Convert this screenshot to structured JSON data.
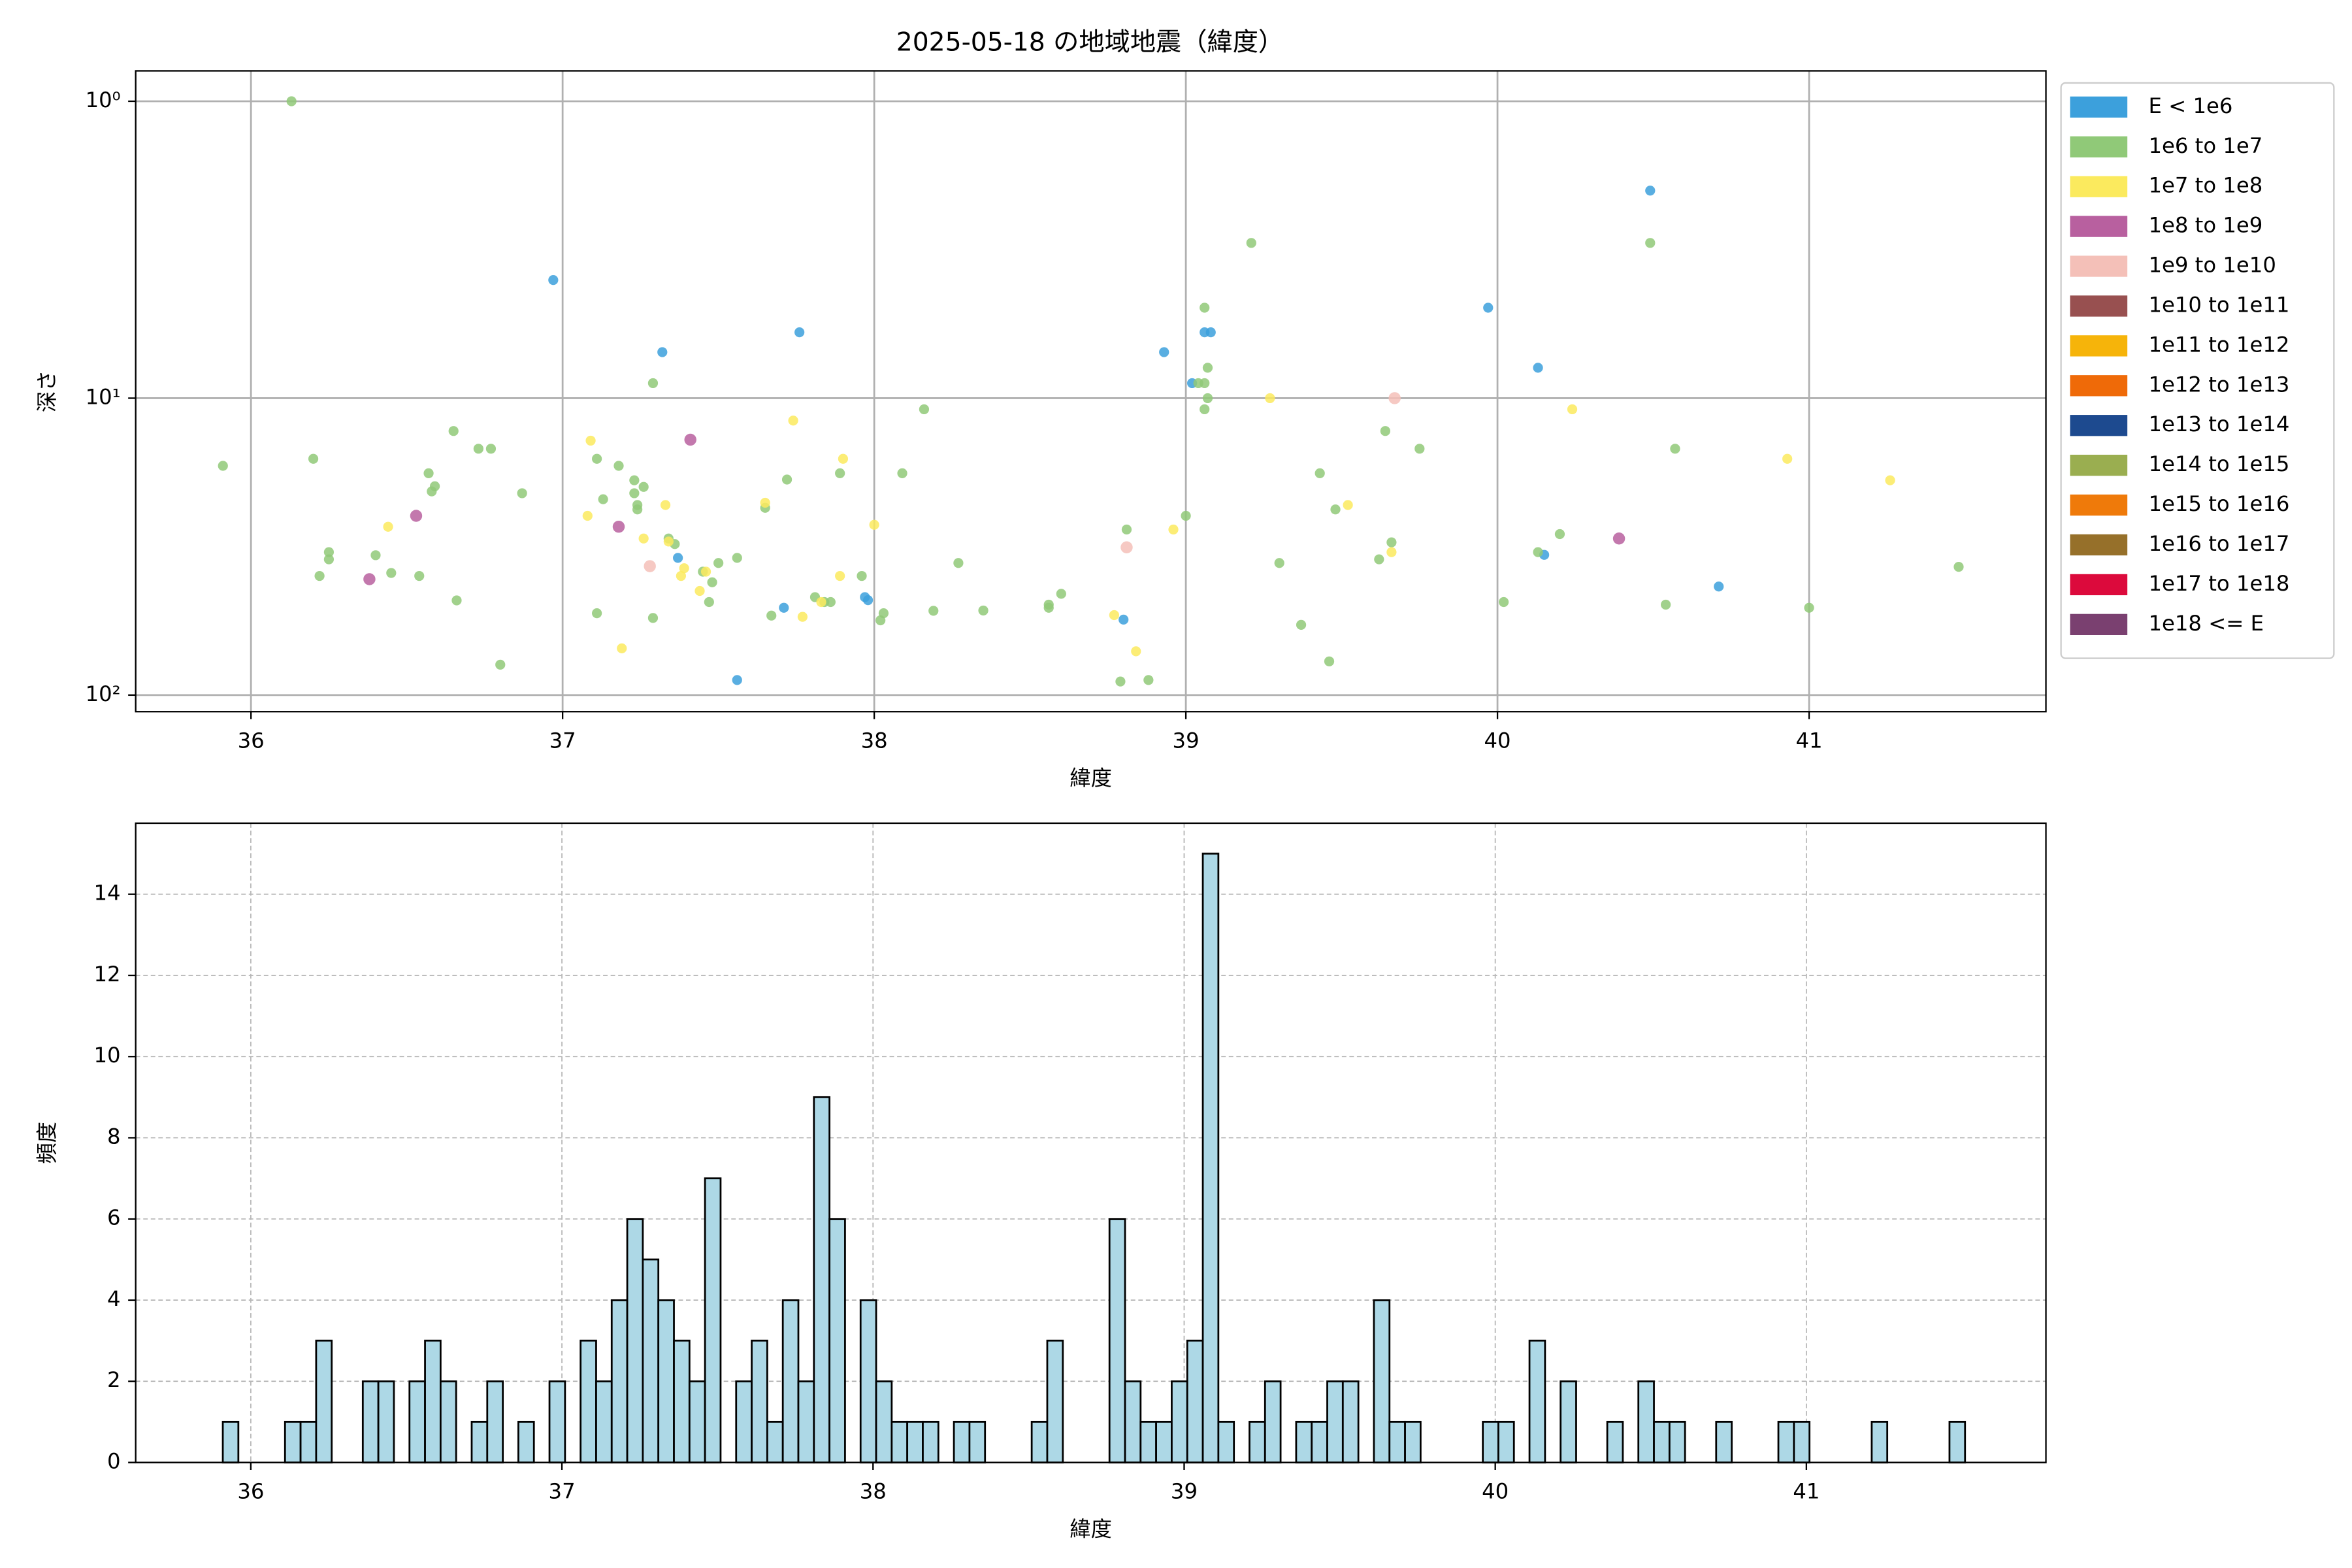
{
  "chart_data": [
    {
      "type": "scatter",
      "title": "2025-05-18 の地域地震（緯度）",
      "x_label": "緯度",
      "y_label": "深さ",
      "yscale": "log",
      "invert_y": true,
      "grid": true,
      "grid_linestyle": "solid",
      "legend": "outside-right",
      "xlim": [
        35.63,
        41.76
      ],
      "xticks": [
        36,
        37,
        38,
        39,
        40,
        41
      ],
      "ylim": [
        0.79,
        113.7
      ],
      "yticks": [
        {
          "value": 1,
          "label": "10⁰"
        },
        {
          "value": 10,
          "label": "10¹"
        },
        {
          "value": 100,
          "label": "10²"
        }
      ],
      "series": [
        {
          "name": "E < 1e6",
          "color": "#3ca0dc",
          "x": [
            36.97,
            37.32,
            37.37,
            37.56,
            37.71,
            37.76,
            37.97,
            37.98,
            38.8,
            38.93,
            39.02,
            39.06,
            39.08,
            40.49,
            39.97,
            40.13,
            40.15,
            40.71
          ],
          "values": [
            4.0,
            7.0,
            34.5,
            89,
            50.8,
            6.0,
            46.8,
            47.9,
            55.7,
            7.0,
            8.9,
            6.0,
            6.0,
            2.0,
            4.96,
            7.9,
            33.7,
            43.1
          ]
        },
        {
          "name": "1e6 to 1e7",
          "color": "#90c978",
          "x": [
            36.13,
            35.91,
            36.2,
            36.25,
            36.25,
            36.22,
            36.4,
            36.45,
            36.54,
            36.58,
            36.59,
            36.57,
            36.65,
            36.66,
            36.73,
            36.77,
            36.8,
            36.87,
            37.11,
            37.11,
            37.13,
            37.18,
            37.23,
            37.23,
            37.24,
            37.24,
            37.26,
            37.29,
            37.29,
            37.34,
            37.36,
            37.45,
            37.47,
            37.48,
            37.5,
            37.56,
            37.65,
            37.67,
            37.72,
            37.81,
            37.84,
            37.86,
            37.89,
            37.96,
            38.02,
            38.03,
            38.09,
            38.16,
            38.19,
            38.27,
            38.35,
            38.56,
            38.56,
            38.6,
            38.81,
            38.79,
            38.88,
            39.0,
            39.06,
            39.07,
            39.06,
            39.07,
            39.06,
            39.04,
            39.21,
            39.3,
            39.37,
            39.43,
            39.46,
            39.48,
            39.62,
            39.64,
            39.66,
            39.75,
            40.02,
            40.13,
            40.2,
            40.49,
            40.54,
            40.57,
            41.0,
            41.48
          ],
          "values": [
            1.0,
            16.9,
            16.0,
            33,
            34.9,
            39.7,
            33.8,
            38.8,
            39.7,
            20.6,
            19.8,
            17.9,
            12.9,
            48,
            14.8,
            14.8,
            79,
            20.9,
            53,
            16,
            21.9,
            16.9,
            18.9,
            20.9,
            22.9,
            23.7,
            19.9,
            8.9,
            55,
            29.7,
            31,
            38.4,
            48.6,
            41.7,
            35.9,
            34.5,
            23.4,
            54,
            18.8,
            46.8,
            48.6,
            48.6,
            17.9,
            39.7,
            56,
            53,
            17.9,
            10.9,
            52,
            35.9,
            51.9,
            49.6,
            50.8,
            45.6,
            27.7,
            90,
            89,
            24.9,
            4.96,
            7.9,
            8.9,
            10,
            10.9,
            8.9,
            3.0,
            35.9,
            58,
            17.9,
            77,
            23.7,
            34.9,
            12.9,
            30.6,
            14.8,
            48.6,
            33,
            28.7,
            3.0,
            49.6,
            14.8,
            50.8,
            37
          ]
        },
        {
          "name": "1e7 to 1e8",
          "color": "#fbea5e",
          "x": [
            36.44,
            37.09,
            37.08,
            37.19,
            37.26,
            37.33,
            37.34,
            37.38,
            37.39,
            37.44,
            37.46,
            37.65,
            37.74,
            37.77,
            37.83,
            37.89,
            37.9,
            38.0,
            38.77,
            38.84,
            38.96,
            39.27,
            39.52,
            39.66,
            40.24,
            40.93,
            41.26
          ],
          "values": [
            27.1,
            13.9,
            24.9,
            69.6,
            29.7,
            22.9,
            30.4,
            39.7,
            37.4,
            44.6,
            38.4,
            22.5,
            11.9,
            54.5,
            48.6,
            39.7,
            16.0,
            26.7,
            53.8,
            71.2,
            27.7,
            10,
            22.9,
            33,
            10.9,
            16.0,
            18.9
          ]
        },
        {
          "name": "1e8 to 1e9",
          "color": "#b8609f",
          "x": [
            36.38,
            36.53,
            37.18,
            37.41,
            40.39
          ],
          "values": [
            40.7,
            24.9,
            27.1,
            13.8,
            29.7
          ]
        },
        {
          "name": "1e9 to 1e10",
          "color": "#f4c0b8",
          "x": [
            37.28,
            38.81,
            39.67
          ],
          "values": [
            36.8,
            31.8,
            10
          ]
        },
        {
          "name": "1e10 to 1e11",
          "color": "#985050",
          "x": [],
          "values": []
        },
        {
          "name": "1e11 to 1e12",
          "color": "#f6b40a",
          "x": [],
          "values": []
        },
        {
          "name": "1e12 to 1e13",
          "color": "#ef6a08",
          "x": [],
          "values": []
        },
        {
          "name": "1e13 to 1e14",
          "color": "#1d4a8f",
          "x": [],
          "values": []
        },
        {
          "name": "1e14 to 1e15",
          "color": "#9aae50",
          "x": [],
          "values": []
        },
        {
          "name": "1e15 to 1e16",
          "color": "#ef7a0a",
          "x": [],
          "values": []
        },
        {
          "name": "1e16 to 1e17",
          "color": "#96702a",
          "x": [],
          "values": []
        },
        {
          "name": "1e17 to 1e18",
          "color": "#dc0a3c",
          "x": [],
          "values": []
        },
        {
          "name": "1e18 <= E",
          "color": "#7a4070",
          "x": [],
          "values": []
        }
      ]
    },
    {
      "type": "histogram",
      "x_label": "緯度",
      "y_label": "頻度",
      "color": "#add8e6",
      "edgecolor": "#000000",
      "grid": true,
      "grid_linestyle": "dashed",
      "xlim": [
        35.63,
        41.77
      ],
      "xticks": [
        36,
        37,
        38,
        39,
        40,
        41
      ],
      "ylim": [
        0,
        15.75
      ],
      "yticks": [
        0,
        2,
        4,
        6,
        8,
        10,
        12,
        14
      ],
      "bins": [
        35.91,
        35.96,
        36.01,
        36.06,
        36.11,
        36.16,
        36.21,
        36.26,
        36.31,
        36.36,
        36.41,
        36.46,
        36.51,
        36.56,
        36.61,
        36.66,
        36.71,
        36.76,
        36.81,
        36.86,
        36.91,
        36.96,
        37.01,
        37.06,
        37.11,
        37.16,
        37.21,
        37.26,
        37.31,
        37.36,
        37.41,
        37.46,
        37.51,
        37.56,
        37.61,
        37.66,
        37.71,
        37.76,
        37.81,
        37.86,
        37.91,
        37.96,
        38.01,
        38.06,
        38.11,
        38.16,
        38.21,
        38.26,
        38.31,
        38.36,
        38.41,
        38.46,
        38.51,
        38.56,
        38.61,
        38.66,
        38.71,
        38.76,
        38.81,
        38.86,
        38.91,
        38.96,
        39.01,
        39.06,
        39.11,
        39.16,
        39.21,
        39.26,
        39.31,
        39.36,
        39.41,
        39.46,
        39.51,
        39.56,
        39.61,
        39.66,
        39.71,
        39.76,
        39.81,
        39.86,
        39.91,
        39.96,
        40.01,
        40.06,
        40.11,
        40.16,
        40.21,
        40.26,
        40.31,
        40.36,
        40.41,
        40.46,
        40.51,
        40.56,
        40.61,
        40.66,
        40.71,
        40.76,
        40.81,
        40.86,
        40.91,
        40.96,
        41.01,
        41.06,
        41.11,
        41.16,
        41.21,
        41.26,
        41.31,
        41.36,
        41.41,
        41.46,
        41.51
      ],
      "values": [
        1,
        0,
        0,
        0,
        1,
        1,
        3,
        0,
        0,
        2,
        2,
        0,
        2,
        3,
        2,
        0,
        1,
        2,
        0,
        1,
        0,
        2,
        0,
        3,
        2,
        4,
        6,
        5,
        4,
        3,
        2,
        7,
        0,
        2,
        3,
        1,
        4,
        2,
        9,
        6,
        0,
        4,
        2,
        1,
        1,
        1,
        0,
        1,
        1,
        0,
        0,
        0,
        1,
        3,
        0,
        0,
        0,
        6,
        2,
        1,
        1,
        2,
        3,
        15,
        1,
        0,
        1,
        2,
        0,
        1,
        1,
        2,
        2,
        0,
        4,
        1,
        1,
        0,
        0,
        0,
        0,
        1,
        1,
        0,
        3,
        0,
        2,
        0,
        0,
        1,
        0,
        2,
        1,
        1,
        0,
        0,
        1,
        0,
        0,
        0,
        1,
        1,
        0,
        0,
        0,
        0,
        1,
        0,
        0,
        0,
        0,
        1
      ]
    }
  ]
}
